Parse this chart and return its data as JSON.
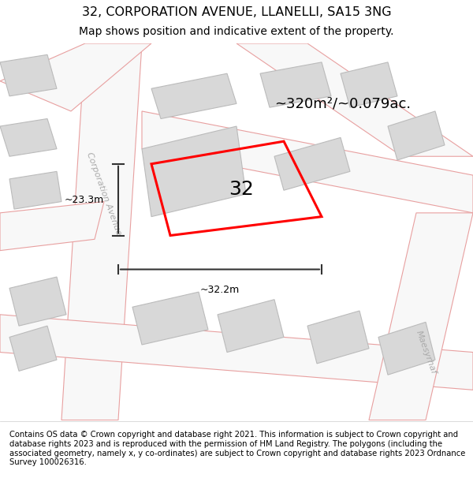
{
  "title": "32, CORPORATION AVENUE, LLANELLI, SA15 3NG",
  "subtitle": "Map shows position and indicative extent of the property.",
  "area_text": "~320m²/~0.079ac.",
  "number_label": "32",
  "dim_width": "~32.2m",
  "dim_height": "~23.3m",
  "street_label": "Corporation Avenue",
  "street_label2": "Maesyrhaf",
  "footer": "Contains OS data © Crown copyright and database right 2021. This information is subject to Crown copyright and database rights 2023 and is reproduced with the permission of HM Land Registry. The polygons (including the associated geometry, namely x, y co-ordinates) are subject to Crown copyright and database rights 2023 Ordnance Survey 100026316.",
  "bg_color": "#f5f5f5",
  "map_bg": "#ffffff",
  "building_fill": "#d8d8d8",
  "building_edge": "#c0c0c0",
  "road_line_color": "#f0b0b0",
  "road_fill": "#fafafa",
  "property_color": "#ff0000",
  "dim_line_color": "#333333",
  "title_color": "#000000",
  "footer_color": "#000000",
  "street_color": "#aaaaaa"
}
